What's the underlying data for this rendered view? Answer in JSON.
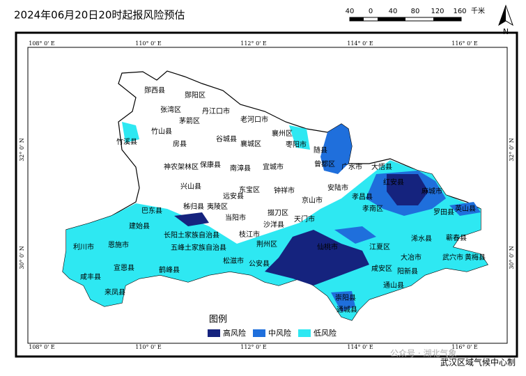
{
  "header": {
    "title": "2024年06月20日20时起报风险预估"
  },
  "scale_bar": {
    "labels": [
      "40",
      "0",
      "40",
      "80",
      "120",
      "160"
    ],
    "unit": "千米"
  },
  "north_arrow": "N",
  "graticule": {
    "top": [
      "108° 0' E",
      "110° 0' E",
      "112° 0' E",
      "114° 0' E",
      "116° 0' E"
    ],
    "bottom": [
      "108° 0' E",
      "110° 0' E",
      "112° 0' E",
      "114° 0' E",
      "116° 0' E"
    ],
    "left": [
      "32° 0' N",
      "30° 0' N"
    ],
    "right": [
      "32° 0' N",
      "30° 0' N"
    ]
  },
  "place_names": [
    "郧西县",
    "郧阳区",
    "张湾区",
    "丹江口市",
    "茅箭区",
    "老河口市",
    "竹山县",
    "襄州区",
    "竹溪县",
    "房县",
    "谷城县",
    "枣阳市",
    "襄城区",
    "随县",
    "神农架林区",
    "保康县",
    "南漳县",
    "宜城市",
    "曾都区",
    "广水市",
    "大悟县",
    "兴山县",
    "远安县",
    "东宝区",
    "钟祥市",
    "安陆市",
    "孝昌县",
    "京山市",
    "红安县",
    "麻城市",
    "巴东县",
    "秭归县",
    "夷陵区",
    "当阳市",
    "掇刀区",
    "沙洋县",
    "天门市",
    "孝南区",
    "罗田县",
    "英山县",
    "建始县",
    "长阳土家族自治县",
    "枝江市",
    "荆州区",
    "仙桃市",
    "江夏区",
    "浠水县",
    "蕲春县",
    "恩施市",
    "五峰土家族自治县",
    "松滋市",
    "公安县",
    "利川市",
    "宣恩县",
    "鹤峰县",
    "咸安区",
    "大冶市",
    "阳新县",
    "武穴市",
    "黄梅县",
    "通山县",
    "咸丰县",
    "来凤县",
    "崇阳县",
    "通城县"
  ],
  "legend": {
    "title": "图例",
    "items": [
      {
        "label": "高风险",
        "color": "#15237e"
      },
      {
        "label": "中风险",
        "color": "#1f6fdc"
      },
      {
        "label": "低风险",
        "color": "#2ee8f2"
      }
    ]
  },
  "footer": "武汉区域气候中心制",
  "watermark": "公众号 · 湖北气象"
}
